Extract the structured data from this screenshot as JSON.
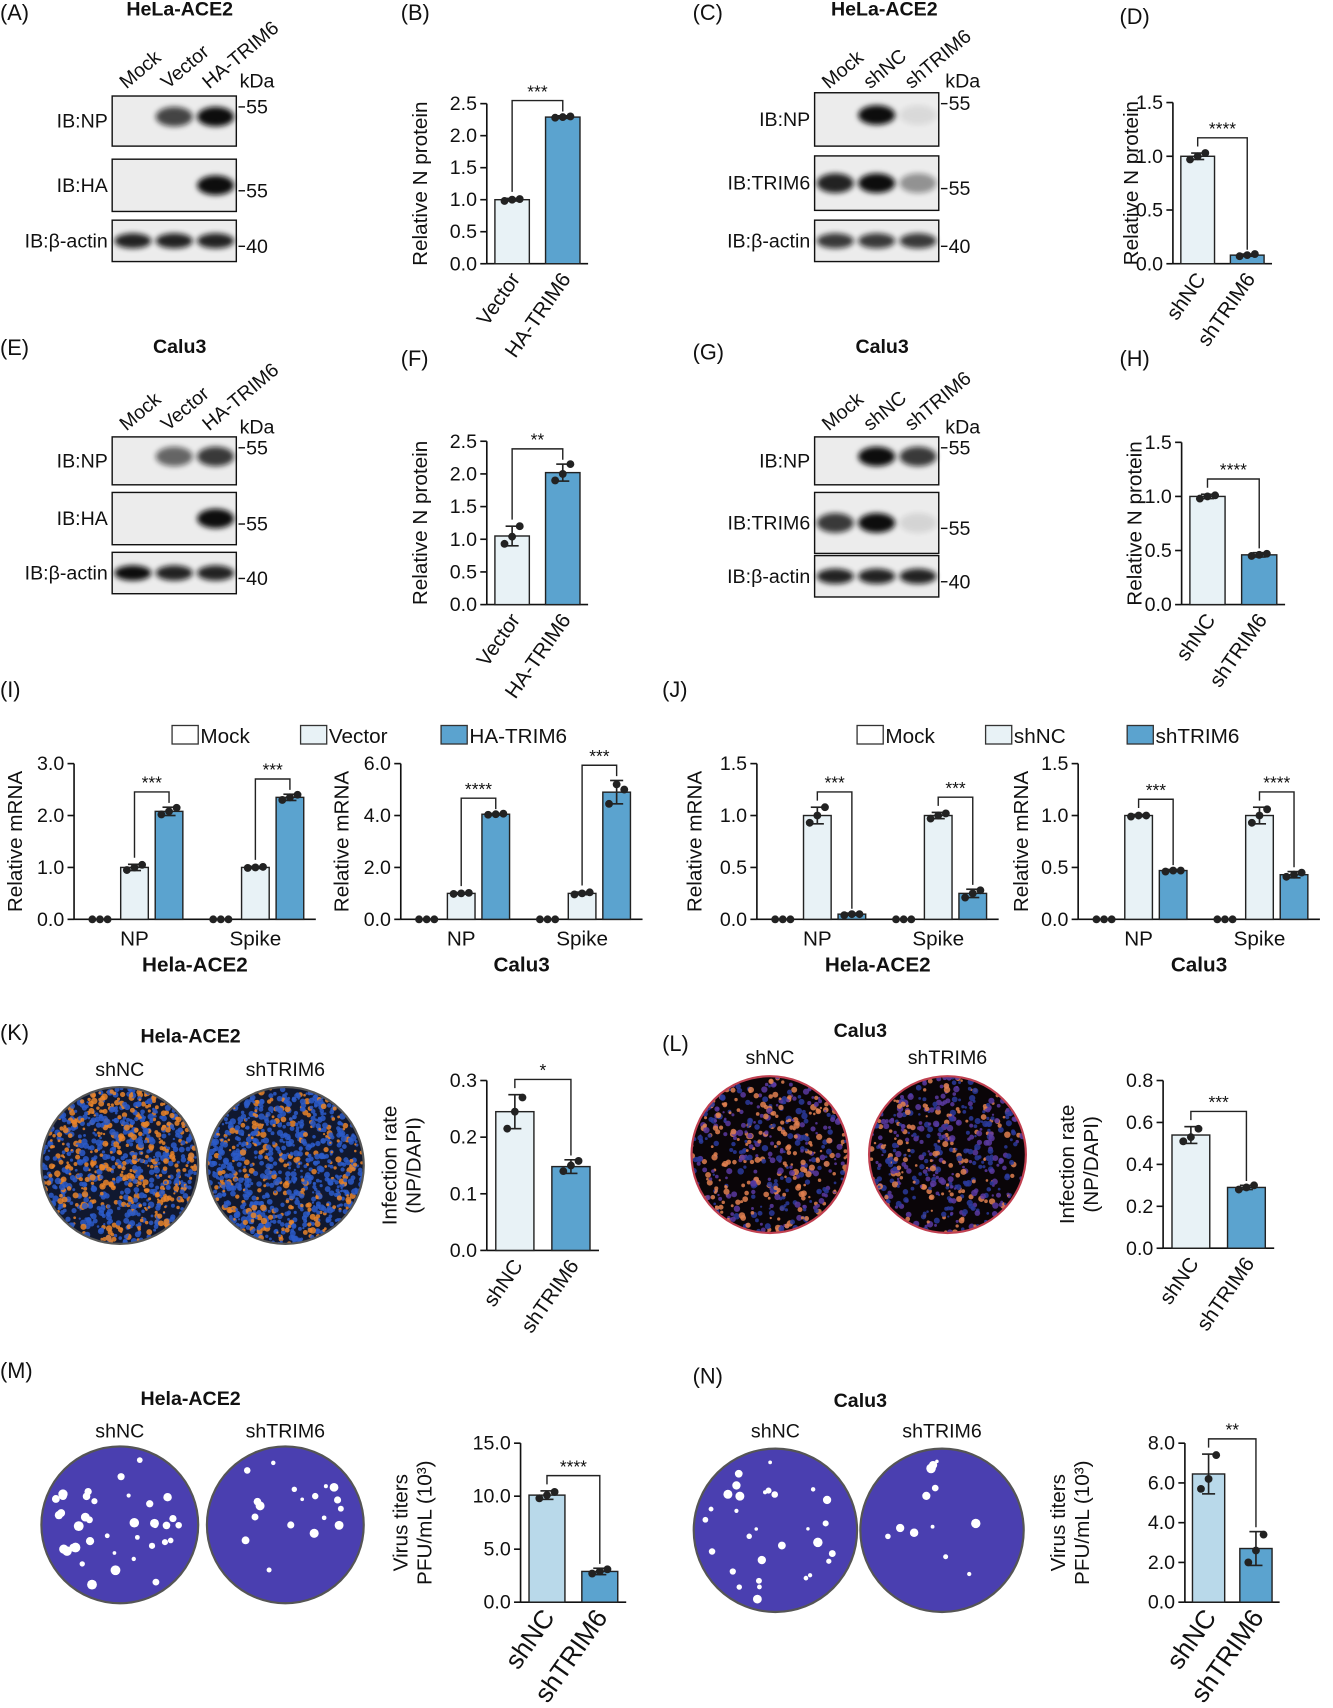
{
  "blots": [
    {
      "panel": "(A)",
      "title": "HeLa-ACE2",
      "lanes": [
        "Mock",
        "Vector",
        "HA-TRIM6"
      ],
      "unit": "kDa",
      "rows": [
        {
          "label": "IB:NP",
          "marker": "55"
        },
        {
          "label": "IB:HA",
          "marker": "55"
        },
        {
          "label": "IB:β-actin",
          "marker": "40"
        }
      ]
    },
    {
      "panel": "(C)",
      "title": "HeLa-ACE2",
      "lanes": [
        "Mock",
        "shNC",
        "shTRIM6"
      ],
      "unit": "kDa",
      "rows": [
        {
          "label": "IB:NP",
          "marker": "55"
        },
        {
          "label": "IB:TRIM6",
          "marker": "55"
        },
        {
          "label": "IB:β-actin",
          "marker": "40"
        }
      ]
    },
    {
      "panel": "(E)",
      "title": "Calu3",
      "lanes": [
        "Mock",
        "Vector",
        "HA-TRIM6"
      ],
      "unit": "kDa",
      "rows": [
        {
          "label": "IB:NP",
          "marker": "55"
        },
        {
          "label": "IB:HA",
          "marker": "55"
        },
        {
          "label": "IB:β-actin",
          "marker": "40"
        }
      ]
    },
    {
      "panel": "(G)",
      "title": "Calu3",
      "lanes": [
        "Mock",
        "shNC",
        "shTRIM6"
      ],
      "unit": "kDa",
      "rows": [
        {
          "label": "IB:NP",
          "marker": "55"
        },
        {
          "label": "IB:TRIM6",
          "marker": "55"
        },
        {
          "label": "IB:β-actin",
          "marker": "40"
        }
      ]
    }
  ],
  "plates": [
    {
      "title": "Hela-ACE2",
      "wells": [
        "shNC",
        "shTRIM6"
      ]
    },
    {
      "title": "Calu3",
      "wells": [
        "shNC",
        "shTRIM6"
      ]
    },
    {
      "title": "Hela-ACE2",
      "wells": [
        "shNC",
        "shTRIM6"
      ]
    },
    {
      "title": "Calu3",
      "wells": [
        "shNC",
        "shTRIM6"
      ]
    }
  ],
  "chart_data": [
    {
      "type": "bar",
      "panel": "(B)",
      "ylabel": [
        "Relative N protein"
      ],
      "categories": [
        "Vector",
        "HA-TRIM6"
      ],
      "values": [
        1.0,
        2.29
      ],
      "errors": [
        0.02,
        0.02
      ],
      "points": [
        [
          0.98,
          1.0,
          1.01
        ],
        [
          2.28,
          2.29,
          2.3
        ]
      ],
      "colors": [
        "#e8f2f6",
        "#5ba3cf"
      ],
      "ylim": [
        0,
        2.5
      ],
      "yticks": [
        {
          "value": 0,
          "label": "0.0"
        },
        0.5,
        {
          "value": 1,
          "label": "1.0"
        },
        1.5,
        {
          "value": 2,
          "label": "2.0"
        },
        2.5
      ],
      "annotations": [
        {
          "text": "***",
          "from": "Vector",
          "to": "HA-TRIM6"
        }
      ]
    },
    {
      "type": "bar",
      "panel": "(D)",
      "ylabel": [
        "Relative N protein"
      ],
      "categories": [
        "shNC",
        "shTRIM6"
      ],
      "values": [
        1.0,
        0.08
      ],
      "errors": [
        0.03,
        0.01
      ],
      "points": [
        [
          0.97,
          1.0,
          1.03
        ],
        [
          0.07,
          0.08,
          0.09
        ]
      ],
      "colors": [
        "#e8f2f6",
        "#5ba3cf"
      ],
      "ylim": [
        0,
        1.5
      ],
      "yticks": [
        {
          "value": 0,
          "label": "0.0"
        },
        0.5,
        {
          "value": 1,
          "label": "1.0"
        },
        1.5
      ],
      "annotations": [
        {
          "text": "****",
          "from": "shNC",
          "to": "shTRIM6"
        }
      ]
    },
    {
      "type": "bar",
      "panel": "(F)",
      "ylabel": [
        "Relative N protein"
      ],
      "categories": [
        "Vector",
        "HA-TRIM6"
      ],
      "values": [
        1.05,
        2.02
      ],
      "errors": [
        0.15,
        0.13
      ],
      "points": [
        [
          0.93,
          1.04,
          1.2
        ],
        [
          1.9,
          2.0,
          2.15
        ]
      ],
      "colors": [
        "#e8f2f6",
        "#5ba3cf"
      ],
      "ylim": [
        0,
        2.5
      ],
      "yticks": [
        {
          "value": 0,
          "label": "0.0"
        },
        0.5,
        {
          "value": 1,
          "label": "1.0"
        },
        1.5,
        {
          "value": 2,
          "label": "2.0"
        },
        2.5
      ],
      "annotations": [
        {
          "text": "**",
          "from": "Vector",
          "to": "HA-TRIM6"
        }
      ]
    },
    {
      "type": "bar",
      "panel": "(H)",
      "ylabel": [
        "Relative N protein"
      ],
      "categories": [
        "shNC",
        "shTRIM6"
      ],
      "values": [
        1.0,
        0.46
      ],
      "errors": [
        0.02,
        0.02
      ],
      "points": [
        [
          0.98,
          1.0,
          1.01
        ],
        [
          0.45,
          0.46,
          0.47
        ]
      ],
      "colors": [
        "#e8f2f6",
        "#5ba3cf"
      ],
      "ylim": [
        0,
        1.5
      ],
      "yticks": [
        {
          "value": 0,
          "label": "0.0"
        },
        0.5,
        {
          "value": 1,
          "label": "1.0"
        },
        1.5
      ],
      "annotations": [
        {
          "text": "****",
          "from": "shNC",
          "to": "shTRIM6"
        }
      ]
    },
    {
      "type": "bar",
      "panel": "(I)",
      "legend": "top",
      "ylabel": [
        "Relative mRNA"
      ],
      "xlabel": "Hela-ACE2",
      "categories": [
        "NP",
        "Spike"
      ],
      "series": [
        {
          "name": "Mock",
          "color": "#ffffff",
          "values": [
            0,
            0
          ],
          "errors": [
            0,
            0
          ],
          "points": [
            [
              0,
              0,
              0
            ],
            [
              0,
              0,
              0
            ]
          ]
        },
        {
          "name": "Vector",
          "color": "#e8f2f6",
          "values": [
            1.0,
            1.0
          ],
          "errors": [
            0.06,
            0.02
          ],
          "points": [
            [
              0.95,
              1.0,
              1.05
            ],
            [
              0.99,
              1.0,
              1.01
            ]
          ]
        },
        {
          "name": "HA-TRIM6",
          "color": "#5ba3cf",
          "values": [
            2.08,
            2.35
          ],
          "errors": [
            0.08,
            0.06
          ],
          "points": [
            [
              2.02,
              2.08,
              2.15
            ],
            [
              2.3,
              2.35,
              2.4
            ]
          ]
        }
      ],
      "ylim": [
        0,
        3
      ],
      "yticks": [
        {
          "value": 0,
          "label": "0.0"
        },
        {
          "value": 1,
          "label": "1.0"
        },
        {
          "value": 2,
          "label": "2.0"
        },
        {
          "value": 3,
          "label": "3.0"
        }
      ],
      "annotations": [
        {
          "text": "***",
          "category": "NP",
          "from": "Vector",
          "to": "HA-TRIM6"
        },
        {
          "text": "***",
          "category": "Spike",
          "from": "Vector",
          "to": "HA-TRIM6"
        }
      ]
    },
    {
      "type": "bar",
      "ylabel": [
        "Relative mRNA"
      ],
      "xlabel": "Calu3",
      "categories": [
        "NP",
        "Spike"
      ],
      "series": [
        {
          "color": "#ffffff",
          "values": [
            0,
            0
          ],
          "errors": [
            0,
            0
          ],
          "points": [
            [
              0,
              0,
              0
            ],
            [
              0,
              0,
              0
            ]
          ]
        },
        {
          "color": "#e8f2f6",
          "values": [
            1.0,
            1.0
          ],
          "errors": [
            0.03,
            0.05
          ],
          "points": [
            [
              0.98,
              1.0,
              1.02
            ],
            [
              0.96,
              1.0,
              1.04
            ]
          ]
        },
        {
          "color": "#5ba3cf",
          "values": [
            4.05,
            4.9
          ],
          "errors": [
            0.03,
            0.45
          ],
          "points": [
            [
              4.03,
              4.05,
              4.07
            ],
            [
              4.45,
              5.2,
              5.0
            ]
          ]
        }
      ],
      "ylim": [
        0,
        6
      ],
      "yticks": [
        {
          "value": 0,
          "label": "0.0"
        },
        {
          "value": 2,
          "label": "2.0"
        },
        {
          "value": 4,
          "label": "4.0"
        },
        {
          "value": 6,
          "label": "6.0"
        }
      ],
      "annotations": [
        {
          "text": "****",
          "category": "NP",
          "from": "Vector",
          "to": "HA-TRIM6"
        },
        {
          "text": "***",
          "category": "Spike",
          "from": "Vector",
          "to": "HA-TRIM6"
        }
      ]
    },
    {
      "type": "bar",
      "panel": "(J)",
      "legend": "top",
      "ylabel": [
        "Relative mRNA"
      ],
      "xlabel": "Hela-ACE2",
      "categories": [
        "NP",
        "Spike"
      ],
      "series": [
        {
          "name": "Mock",
          "color": "#ffffff",
          "values": [
            0,
            0
          ],
          "errors": [
            0,
            0
          ],
          "points": [
            [
              0,
              0,
              0
            ],
            [
              0,
              0,
              0
            ]
          ]
        },
        {
          "name": "shNC",
          "color": "#e8f2f6",
          "values": [
            1.0,
            1.0
          ],
          "errors": [
            0.08,
            0.03
          ],
          "points": [
            [
              0.93,
              1.0,
              1.08
            ],
            [
              0.97,
              1.0,
              1.02
            ]
          ]
        },
        {
          "name": "shTRIM6",
          "color": "#5ba3cf",
          "values": [
            0.05,
            0.25
          ],
          "errors": [
            0.01,
            0.04
          ],
          "points": [
            [
              0.04,
              0.05,
              0.05
            ],
            [
              0.21,
              0.25,
              0.28
            ]
          ]
        }
      ],
      "ylim": [
        0,
        1.5
      ],
      "yticks": [
        {
          "value": 0,
          "label": "0.0"
        },
        0.5,
        {
          "value": 1,
          "label": "1.0"
        },
        1.5
      ],
      "annotations": [
        {
          "text": "***",
          "category": "NP",
          "from": "shNC",
          "to": "shTRIM6"
        },
        {
          "text": "***",
          "category": "Spike",
          "from": "shNC",
          "to": "shTRIM6"
        }
      ]
    },
    {
      "type": "bar",
      "ylabel": [
        "Relative mRNA"
      ],
      "xlabel": "Calu3",
      "categories": [
        "NP",
        "Spike"
      ],
      "series": [
        {
          "color": "#ffffff",
          "values": [
            0,
            0
          ],
          "errors": [
            0,
            0
          ],
          "points": [
            [
              0,
              0,
              0
            ],
            [
              0,
              0,
              0
            ]
          ]
        },
        {
          "color": "#e8f2f6",
          "values": [
            1.0,
            1.0
          ],
          "errors": [
            0.01,
            0.08
          ],
          "points": [
            [
              0.99,
              1.0,
              1.0
            ],
            [
              0.93,
              1.0,
              1.06
            ]
          ]
        },
        {
          "color": "#5ba3cf",
          "values": [
            0.47,
            0.43
          ],
          "errors": [
            0.01,
            0.03
          ],
          "points": [
            [
              0.46,
              0.47,
              0.47
            ],
            [
              0.41,
              0.43,
              0.45
            ]
          ]
        }
      ],
      "ylim": [
        0,
        1.5
      ],
      "yticks": [
        {
          "value": 0,
          "label": "0.0"
        },
        0.5,
        {
          "value": 1,
          "label": "1.0"
        },
        1.5
      ],
      "annotations": [
        {
          "text": "***",
          "category": "NP",
          "from": "shNC",
          "to": "shTRIM6"
        },
        {
          "text": "****",
          "category": "Spike",
          "from": "shNC",
          "to": "shTRIM6"
        }
      ]
    },
    {
      "type": "bar",
      "panel": "(K)",
      "ylabel": [
        "Infection rate",
        "(NP/DAPI)"
      ],
      "categories": [
        "shNC",
        "shTRIM6"
      ],
      "values": [
        0.245,
        0.148
      ],
      "errors": [
        0.03,
        0.012
      ],
      "points": [
        [
          0.215,
          0.245,
          0.27
        ],
        [
          0.14,
          0.15,
          0.158
        ]
      ],
      "colors": [
        "#e8f2f6",
        "#5ba3cf"
      ],
      "ylim": [
        0,
        0.3
      ],
      "yticks": [
        {
          "value": 0,
          "label": "0.0"
        },
        0.1,
        0.2,
        0.3
      ],
      "annotations": [
        {
          "text": "*",
          "from": "shNC",
          "to": "shTRIM6"
        }
      ]
    },
    {
      "type": "bar",
      "panel": "(L)",
      "ylabel": [
        "Infection rate",
        "(NP/DAPI)"
      ],
      "categories": [
        "shNC",
        "shTRIM6"
      ],
      "values": [
        0.54,
        0.29
      ],
      "errors": [
        0.04,
        0.01
      ],
      "points": [
        [
          0.51,
          0.53,
          0.57
        ],
        [
          0.28,
          0.29,
          0.3
        ]
      ],
      "colors": [
        "#e8f2f6",
        "#5ba3cf"
      ],
      "ylim": [
        0,
        0.8
      ],
      "yticks": [
        {
          "value": 0,
          "label": "0.0"
        },
        0.2,
        0.4,
        0.6,
        0.8
      ],
      "annotations": [
        {
          "text": "***",
          "from": "shNC",
          "to": "shTRIM6"
        }
      ]
    },
    {
      "type": "bar",
      "panel": "(M)",
      "ylabel": [
        "Virus titers",
        "PFU/mL (10³)"
      ],
      "categories": [
        "shNC",
        "shTRIM6"
      ],
      "values": [
        10.1,
        2.9
      ],
      "errors": [
        0.4,
        0.3
      ],
      "points": [
        [
          9.8,
          10.1,
          10.4
        ],
        [
          2.7,
          2.9,
          3.1
        ]
      ],
      "colors": [
        "#b9d9ea",
        "#5ba3cf"
      ],
      "ylim": [
        0,
        15
      ],
      "yticks": [
        {
          "value": 0,
          "label": "0.0"
        },
        {
          "value": 5,
          "label": "5.0"
        },
        {
          "value": 10,
          "label": "10.0"
        },
        {
          "value": 15,
          "label": "15.0"
        }
      ],
      "annotations": [
        {
          "text": "****",
          "from": "shNC",
          "to": "shTRIM6"
        }
      ]
    },
    {
      "type": "bar",
      "panel": "(N)",
      "ylabel": [
        "Virus titers",
        "PFU/mL (10³)"
      ],
      "categories": [
        "shNC",
        "shTRIM6"
      ],
      "values": [
        6.45,
        2.7
      ],
      "errors": [
        1.0,
        0.85
      ],
      "points": [
        [
          5.7,
          6.2,
          7.4
        ],
        [
          2.0,
          2.6,
          3.4
        ]
      ],
      "colors": [
        "#b9d9ea",
        "#5ba3cf"
      ],
      "ylim": [
        0,
        8
      ],
      "yticks": [
        {
          "value": 0,
          "label": "0.0"
        },
        {
          "value": 2,
          "label": "2.0"
        },
        {
          "value": 4,
          "label": "4.0"
        },
        {
          "value": 6,
          "label": "6.0"
        },
        {
          "value": 8,
          "label": "8.0"
        }
      ],
      "annotations": [
        {
          "text": "**",
          "from": "shNC",
          "to": "shTRIM6"
        }
      ]
    }
  ]
}
